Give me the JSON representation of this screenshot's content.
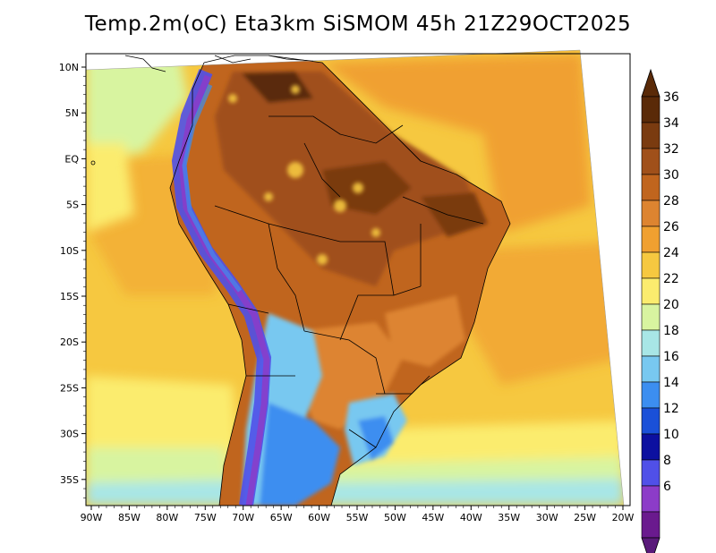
{
  "title": "Temp.2m(oC) Eta3km SiSMOM 45h 21Z29OCT2025",
  "map": {
    "lat_ticks": [
      "10N",
      "5N",
      "EQ",
      "5S",
      "10S",
      "15S",
      "20S",
      "25S",
      "30S",
      "35S"
    ],
    "lon_ticks": [
      "90W",
      "85W",
      "80W",
      "75W",
      "70W",
      "65W",
      "60W",
      "55W",
      "50W",
      "45W",
      "40W",
      "35W",
      "30W",
      "25W",
      "20W"
    ],
    "lon_range": [
      -90,
      -20
    ],
    "lat_range": [
      -38,
      12
    ]
  },
  "colorbar": {
    "labels": [
      "36",
      "34",
      "32",
      "30",
      "28",
      "26",
      "24",
      "22",
      "20",
      "18",
      "16",
      "14",
      "12",
      "10",
      "8",
      "6"
    ],
    "colors": [
      "#5a2a08",
      "#7a3b10",
      "#a0501a",
      "#c0651e",
      "#dd8430",
      "#f0a030",
      "#f6c840",
      "#fbec6e",
      "#d8f4a0",
      "#a8e6e6",
      "#78c8f0",
      "#3c8ef0",
      "#1a50d8",
      "#0c10a0",
      "#5050e8",
      "#8c3cc8",
      "#6a1a8e"
    ],
    "top_triangle_color": "#5a2a08",
    "bottom_triangle_color": "#5a1a7a"
  }
}
